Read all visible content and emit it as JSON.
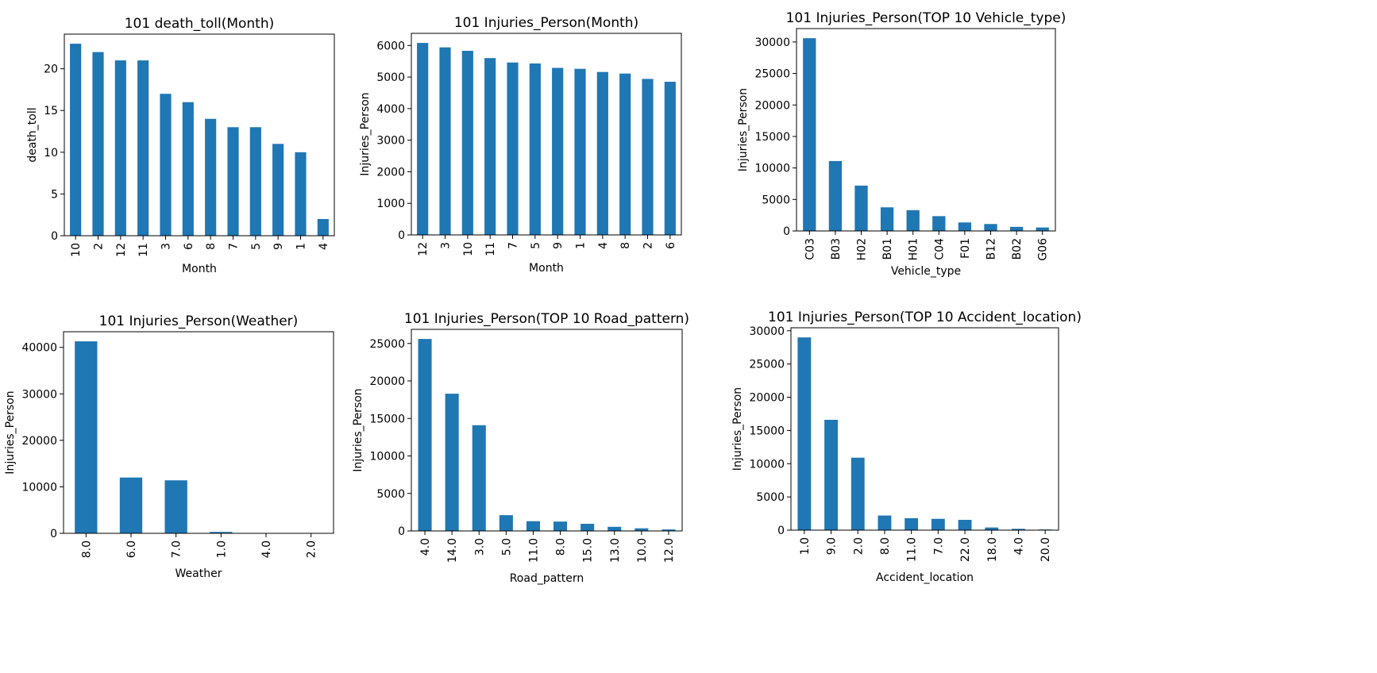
{
  "chart_data": [
    {
      "type": "bar",
      "title": "101 death_toll(Month)",
      "xlabel": "Month",
      "ylabel": "death_toll",
      "categories": [
        "10",
        "2",
        "12",
        "11",
        "3",
        "6",
        "8",
        "7",
        "5",
        "9",
        "1",
        "4"
      ],
      "values": [
        23,
        22,
        21,
        21,
        17,
        16,
        14,
        13,
        13,
        11,
        10,
        2
      ],
      "ylim": [
        0,
        24.15
      ],
      "yticks": [
        0,
        5,
        10,
        15,
        20
      ],
      "color": "#1f77b4",
      "grid": false,
      "legend": "none"
    },
    {
      "type": "bar",
      "title": "101 Injuries_Person(Month)",
      "xlabel": "Month",
      "ylabel": "Injuries_Person",
      "categories": [
        "12",
        "3",
        "10",
        "11",
        "7",
        "5",
        "9",
        "1",
        "4",
        "8",
        "2",
        "6"
      ],
      "values": [
        6080,
        5940,
        5830,
        5600,
        5460,
        5430,
        5290,
        5260,
        5160,
        5110,
        4940,
        4850
      ],
      "ylim": [
        0,
        6384
      ],
      "yticks": [
        0,
        1000,
        2000,
        3000,
        4000,
        5000,
        6000
      ],
      "color": "#1f77b4",
      "grid": false,
      "legend": "none"
    },
    {
      "type": "bar",
      "title": "101 Injuries_Person(TOP 10 Vehicle_type)",
      "xlabel": "Vehicle_type",
      "ylabel": "Injuries_Person",
      "categories": [
        "C03",
        "B03",
        "H02",
        "B01",
        "H01",
        "C04",
        "F01",
        "B12",
        "B02",
        "G06"
      ],
      "values": [
        30600,
        11100,
        7200,
        3750,
        3300,
        2350,
        1350,
        1100,
        650,
        550
      ],
      "ylim": [
        0,
        32130
      ],
      "yticks": [
        0,
        5000,
        10000,
        15000,
        20000,
        25000,
        30000
      ],
      "color": "#1f77b4",
      "grid": false,
      "legend": "none"
    },
    {
      "type": "bar",
      "title": "101 Injuries_Person(Weather)",
      "xlabel": "Weather",
      "ylabel": "Injuries_Person",
      "categories": [
        "8.0",
        "6.0",
        "7.0",
        "1.0",
        "4.0",
        "2.0"
      ],
      "values": [
        41300,
        12000,
        11400,
        300,
        60,
        20
      ],
      "ylim": [
        0,
        43365
      ],
      "yticks": [
        0,
        10000,
        20000,
        30000,
        40000
      ],
      "color": "#1f77b4",
      "grid": false,
      "legend": "none"
    },
    {
      "type": "bar",
      "title": "101 Injuries_Person(TOP 10 Road_pattern)",
      "xlabel": "Road_pattern",
      "ylabel": "Injuries_Person",
      "categories": [
        "4.0",
        "14.0",
        "3.0",
        "5.0",
        "11.0",
        "8.0",
        "15.0",
        "13.0",
        "10.0",
        "12.0"
      ],
      "values": [
        25600,
        18300,
        14100,
        2100,
        1300,
        1250,
        950,
        550,
        350,
        200
      ],
      "ylim": [
        0,
        26880
      ],
      "yticks": [
        0,
        5000,
        10000,
        15000,
        20000,
        25000
      ],
      "color": "#1f77b4",
      "grid": false,
      "legend": "none"
    },
    {
      "type": "bar",
      "title": "101 Injuries_Person(TOP 10 Accident_location)",
      "xlabel": "Accident_location",
      "ylabel": "Injuries_Person",
      "categories": [
        "1.0",
        "9.0",
        "2.0",
        "8.0",
        "11.0",
        "7.0",
        "22.0",
        "18.0",
        "4.0",
        "20.0"
      ],
      "values": [
        29000,
        16600,
        10900,
        2200,
        1800,
        1700,
        1550,
        400,
        200,
        100
      ],
      "ylim": [
        0,
        30450
      ],
      "yticks": [
        0,
        5000,
        10000,
        15000,
        20000,
        25000,
        30000
      ],
      "color": "#1f77b4",
      "grid": false,
      "legend": "none"
    }
  ]
}
